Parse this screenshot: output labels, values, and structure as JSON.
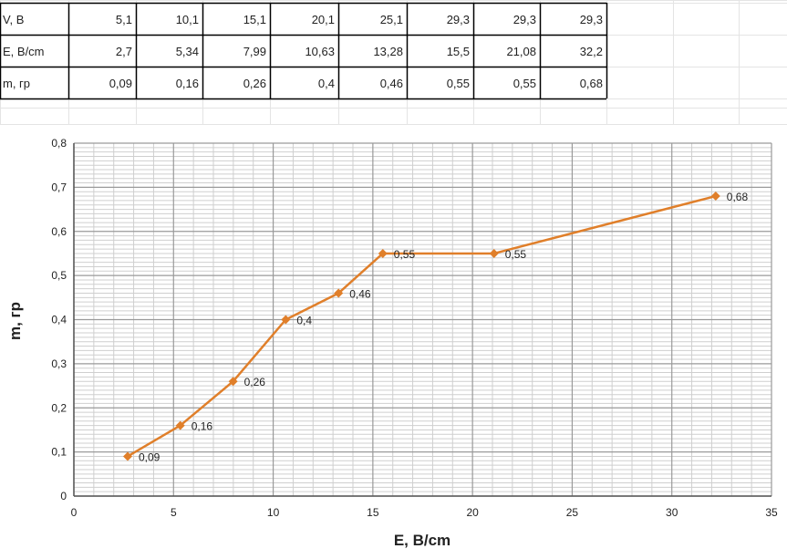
{
  "table": {
    "rows": [
      {
        "label": "V, В",
        "values": [
          "5,1",
          "10,1",
          "15,1",
          "20,1",
          "25,1",
          "29,3",
          "29,3",
          "29,3"
        ]
      },
      {
        "label": "E, В/cm",
        "values": [
          "2,7",
          "5,34",
          "7,99",
          "10,63",
          "13,28",
          "15,5",
          "21,08",
          "32,2"
        ]
      },
      {
        "label": "m, гр",
        "values": [
          "0,09",
          "0,16",
          "0,26",
          "0,4",
          "0,46",
          "0,55",
          "0,55",
          "0,68"
        ]
      }
    ]
  },
  "colors": {
    "series": "#E07F2A",
    "grid": "#9a9a9a",
    "minor_grid": "#cfcfcf",
    "text": "#222222",
    "sheet_grid": "#e4e4e4"
  },
  "chart_data": {
    "type": "scatter",
    "title": "",
    "xlabel": "E, В/cm",
    "ylabel": "m, гр",
    "xlim": [
      0,
      35
    ],
    "ylim": [
      0,
      0.8
    ],
    "x_ticks": [
      "0",
      "5",
      "10",
      "15",
      "20",
      "25",
      "30",
      "35"
    ],
    "y_ticks": [
      "0",
      "0,1",
      "0,2",
      "0,3",
      "0,4",
      "0,5",
      "0,6",
      "0,7",
      "0,8"
    ],
    "grid": true,
    "legend": "none",
    "series": [
      {
        "x": [
          2.7,
          5.34,
          7.99,
          10.63,
          13.28,
          15.5,
          21.08,
          32.2
        ],
        "y": [
          0.09,
          0.16,
          0.26,
          0.4,
          0.46,
          0.55,
          0.55,
          0.68
        ],
        "labels": [
          "0,09",
          "0,16",
          "0,26",
          "0,4",
          "0,46",
          "0,55",
          "0,55",
          "0,68"
        ]
      }
    ]
  }
}
